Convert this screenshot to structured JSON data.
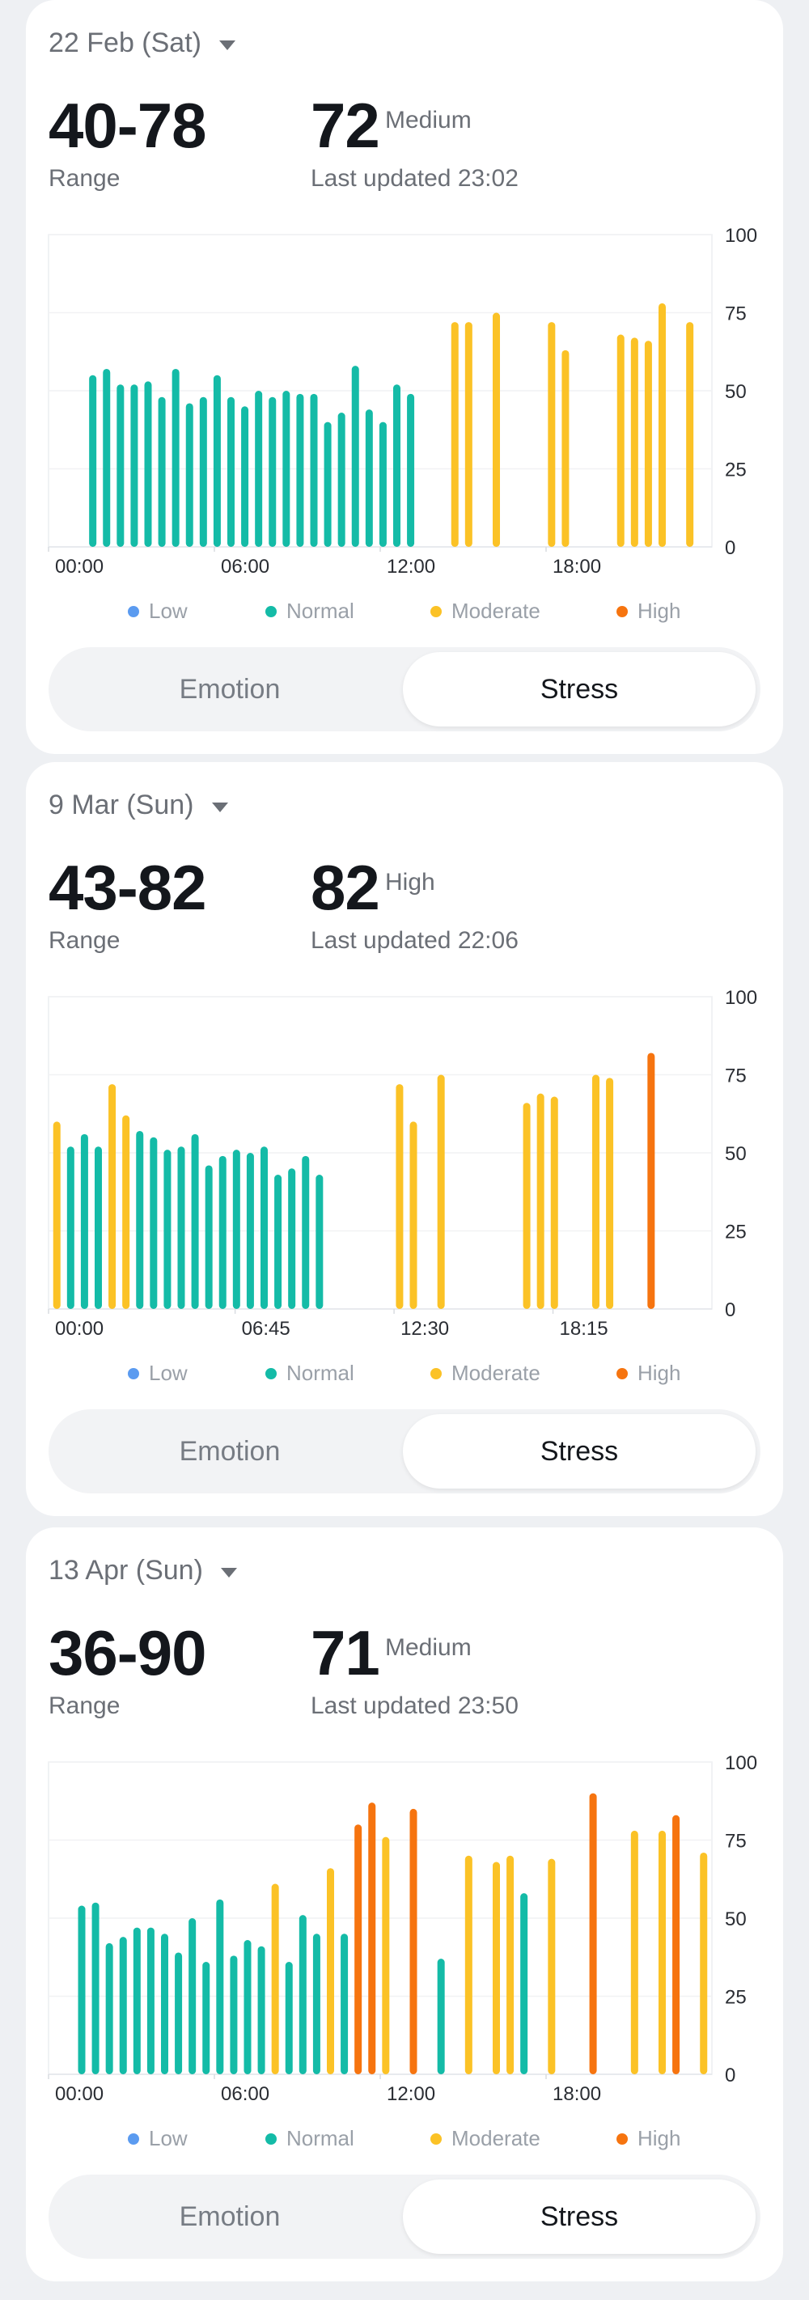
{
  "legend": [
    {
      "label": "Low",
      "color": "#5b9bf0"
    },
    {
      "label": "Normal",
      "color": "#14bba7"
    },
    {
      "label": "Moderate",
      "color": "#fbc226"
    },
    {
      "label": "High",
      "color": "#f6740f"
    }
  ],
  "tabs": {
    "emotion": "Emotion",
    "stress": "Stress",
    "selected": "Stress"
  },
  "cards": [
    {
      "date": "22 Feb (Sat)",
      "range": "40-78",
      "range_label": "Range",
      "current": "72",
      "level": "Medium",
      "updated": "Last updated 23:02",
      "chart_data": {
        "type": "bar",
        "x_tick_labels": [
          "00:00",
          "06:00",
          "12:00",
          "18:00"
        ],
        "x_unit": "hours of day",
        "x_ticks": [
          0,
          6,
          12,
          18
        ],
        "xlim": [
          0,
          24
        ],
        "y_ticks": [
          0,
          25,
          50,
          75,
          100
        ],
        "ylim": [
          0,
          100
        ],
        "bars": [
          {
            "x": 1.6,
            "value": 55,
            "level": "Normal"
          },
          {
            "x": 2.1,
            "value": 57,
            "level": "Normal"
          },
          {
            "x": 2.6,
            "value": 52,
            "level": "Normal"
          },
          {
            "x": 3.1,
            "value": 52,
            "level": "Normal"
          },
          {
            "x": 3.6,
            "value": 53,
            "level": "Normal"
          },
          {
            "x": 4.1,
            "value": 48,
            "level": "Normal"
          },
          {
            "x": 4.6,
            "value": 57,
            "level": "Normal"
          },
          {
            "x": 5.1,
            "value": 46,
            "level": "Normal"
          },
          {
            "x": 5.6,
            "value": 48,
            "level": "Normal"
          },
          {
            "x": 6.1,
            "value": 55,
            "level": "Normal"
          },
          {
            "x": 6.6,
            "value": 48,
            "level": "Normal"
          },
          {
            "x": 7.1,
            "value": 45,
            "level": "Normal"
          },
          {
            "x": 7.6,
            "value": 50,
            "level": "Normal"
          },
          {
            "x": 8.1,
            "value": 48,
            "level": "Normal"
          },
          {
            "x": 8.6,
            "value": 50,
            "level": "Normal"
          },
          {
            "x": 9.1,
            "value": 49,
            "level": "Normal"
          },
          {
            "x": 9.6,
            "value": 49,
            "level": "Normal"
          },
          {
            "x": 10.1,
            "value": 40,
            "level": "Normal"
          },
          {
            "x": 10.6,
            "value": 43,
            "level": "Normal"
          },
          {
            "x": 11.1,
            "value": 58,
            "level": "Normal"
          },
          {
            "x": 11.6,
            "value": 44,
            "level": "Normal"
          },
          {
            "x": 12.1,
            "value": 40,
            "level": "Normal"
          },
          {
            "x": 12.6,
            "value": 52,
            "level": "Normal"
          },
          {
            "x": 13.1,
            "value": 49,
            "level": "Normal"
          },
          {
            "x": 14.7,
            "value": 72,
            "level": "Moderate"
          },
          {
            "x": 15.2,
            "value": 72,
            "level": "Moderate"
          },
          {
            "x": 16.2,
            "value": 75,
            "level": "Moderate"
          },
          {
            "x": 18.2,
            "value": 72,
            "level": "Moderate"
          },
          {
            "x": 18.7,
            "value": 63,
            "level": "Moderate"
          },
          {
            "x": 20.7,
            "value": 68,
            "level": "Moderate"
          },
          {
            "x": 21.2,
            "value": 67,
            "level": "Moderate"
          },
          {
            "x": 21.7,
            "value": 66,
            "level": "Moderate"
          },
          {
            "x": 22.2,
            "value": 78,
            "level": "Moderate"
          },
          {
            "x": 23.2,
            "value": 72,
            "level": "Moderate"
          }
        ]
      }
    },
    {
      "date": "9 Mar (Sun)",
      "range": "43-82",
      "range_label": "Range",
      "current": "82",
      "level": "High",
      "updated": "Last updated 22:06",
      "chart_data": {
        "type": "bar",
        "x_tick_labels": [
          "00:00",
          "06:45",
          "12:30",
          "18:15"
        ],
        "x_unit": "hours of day",
        "x_ticks": [
          0,
          6.75,
          12.5,
          18.25
        ],
        "xlim": [
          0,
          24
        ],
        "y_ticks": [
          0,
          25,
          50,
          75,
          100
        ],
        "ylim": [
          0,
          100
        ],
        "bars": [
          {
            "x": 0.3,
            "value": 60,
            "level": "Moderate"
          },
          {
            "x": 0.8,
            "value": 52,
            "level": "Normal"
          },
          {
            "x": 1.3,
            "value": 56,
            "level": "Normal"
          },
          {
            "x": 1.8,
            "value": 52,
            "level": "Normal"
          },
          {
            "x": 2.3,
            "value": 72,
            "level": "Moderate"
          },
          {
            "x": 2.8,
            "value": 62,
            "level": "Moderate"
          },
          {
            "x": 3.3,
            "value": 57,
            "level": "Normal"
          },
          {
            "x": 3.8,
            "value": 55,
            "level": "Normal"
          },
          {
            "x": 4.3,
            "value": 51,
            "level": "Normal"
          },
          {
            "x": 4.8,
            "value": 52,
            "level": "Normal"
          },
          {
            "x": 5.3,
            "value": 56,
            "level": "Normal"
          },
          {
            "x": 5.8,
            "value": 46,
            "level": "Normal"
          },
          {
            "x": 6.3,
            "value": 49,
            "level": "Normal"
          },
          {
            "x": 6.8,
            "value": 51,
            "level": "Normal"
          },
          {
            "x": 7.3,
            "value": 50,
            "level": "Normal"
          },
          {
            "x": 7.8,
            "value": 52,
            "level": "Normal"
          },
          {
            "x": 8.3,
            "value": 43,
            "level": "Normal"
          },
          {
            "x": 8.8,
            "value": 45,
            "level": "Normal"
          },
          {
            "x": 9.3,
            "value": 49,
            "level": "Normal"
          },
          {
            "x": 9.8,
            "value": 43,
            "level": "Normal"
          },
          {
            "x": 12.7,
            "value": 72,
            "level": "Moderate"
          },
          {
            "x": 13.2,
            "value": 60,
            "level": "Moderate"
          },
          {
            "x": 14.2,
            "value": 75,
            "level": "Moderate"
          },
          {
            "x": 17.3,
            "value": 66,
            "level": "Moderate"
          },
          {
            "x": 17.8,
            "value": 69,
            "level": "Moderate"
          },
          {
            "x": 18.3,
            "value": 68,
            "level": "Moderate"
          },
          {
            "x": 19.8,
            "value": 75,
            "level": "Moderate"
          },
          {
            "x": 20.3,
            "value": 74,
            "level": "Moderate"
          },
          {
            "x": 21.8,
            "value": 82,
            "level": "High"
          }
        ]
      }
    },
    {
      "date": "13 Apr (Sun)",
      "range": "36-90",
      "range_label": "Range",
      "current": "71",
      "level": "Medium",
      "updated": "Last updated 23:50",
      "chart_data": {
        "type": "bar",
        "x_tick_labels": [
          "00:00",
          "06:00",
          "12:00",
          "18:00"
        ],
        "x_unit": "hours of day",
        "x_ticks": [
          0,
          6,
          12,
          18
        ],
        "xlim": [
          0,
          24
        ],
        "y_ticks": [
          0,
          25,
          50,
          75,
          100
        ],
        "ylim": [
          0,
          100
        ],
        "bars": [
          {
            "x": 1.2,
            "value": 54,
            "level": "Normal"
          },
          {
            "x": 1.7,
            "value": 55,
            "level": "Normal"
          },
          {
            "x": 2.2,
            "value": 42,
            "level": "Normal"
          },
          {
            "x": 2.7,
            "value": 44,
            "level": "Normal"
          },
          {
            "x": 3.2,
            "value": 47,
            "level": "Normal"
          },
          {
            "x": 3.7,
            "value": 47,
            "level": "Normal"
          },
          {
            "x": 4.2,
            "value": 45,
            "level": "Normal"
          },
          {
            "x": 4.7,
            "value": 39,
            "level": "Normal"
          },
          {
            "x": 5.2,
            "value": 50,
            "level": "Normal"
          },
          {
            "x": 5.7,
            "value": 36,
            "level": "Normal"
          },
          {
            "x": 6.2,
            "value": 56,
            "level": "Normal"
          },
          {
            "x": 6.7,
            "value": 38,
            "level": "Normal"
          },
          {
            "x": 7.2,
            "value": 43,
            "level": "Normal"
          },
          {
            "x": 7.7,
            "value": 41,
            "level": "Normal"
          },
          {
            "x": 8.2,
            "value": 61,
            "level": "Moderate"
          },
          {
            "x": 8.7,
            "value": 36,
            "level": "Normal"
          },
          {
            "x": 9.2,
            "value": 51,
            "level": "Normal"
          },
          {
            "x": 9.7,
            "value": 45,
            "level": "Normal"
          },
          {
            "x": 10.2,
            "value": 66,
            "level": "Moderate"
          },
          {
            "x": 10.7,
            "value": 45,
            "level": "Normal"
          },
          {
            "x": 11.2,
            "value": 80,
            "level": "High"
          },
          {
            "x": 11.7,
            "value": 87,
            "level": "High"
          },
          {
            "x": 12.2,
            "value": 76,
            "level": "Moderate"
          },
          {
            "x": 13.2,
            "value": 85,
            "level": "High"
          },
          {
            "x": 14.2,
            "value": 37,
            "level": "Normal"
          },
          {
            "x": 15.2,
            "value": 70,
            "level": "Moderate"
          },
          {
            "x": 16.2,
            "value": 68,
            "level": "Moderate"
          },
          {
            "x": 16.7,
            "value": 70,
            "level": "Moderate"
          },
          {
            "x": 17.2,
            "value": 58,
            "level": "Normal"
          },
          {
            "x": 18.2,
            "value": 69,
            "level": "Moderate"
          },
          {
            "x": 19.7,
            "value": 90,
            "level": "High"
          },
          {
            "x": 21.2,
            "value": 78,
            "level": "Moderate"
          },
          {
            "x": 22.2,
            "value": 78,
            "level": "Moderate"
          },
          {
            "x": 22.7,
            "value": 83,
            "level": "High"
          },
          {
            "x": 23.7,
            "value": 71,
            "level": "Moderate"
          }
        ]
      }
    }
  ]
}
